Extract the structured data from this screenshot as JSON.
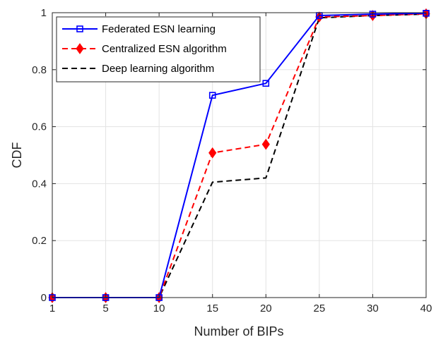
{
  "chart_data": {
    "type": "line",
    "xlabel": "Number of BIPs",
    "ylabel": "CDF",
    "categories": [
      "1",
      "5",
      "10",
      "15",
      "20",
      "25",
      "30",
      "40"
    ],
    "ylim": [
      0,
      1
    ],
    "yticks": [
      "0",
      "0.2",
      "0.4",
      "0.6",
      "0.8",
      "1"
    ],
    "grid": true,
    "legend_position": "top-left",
    "series": [
      {
        "name": "Federated ESN learning",
        "values": [
          0,
          0,
          0,
          0.71,
          0.752,
          0.99,
          0.995,
          0.998
        ],
        "color": "#0000ff",
        "dash": "solid",
        "marker": "square"
      },
      {
        "name": "Centralized ESN algorithm",
        "values": [
          0,
          0,
          0,
          0.508,
          0.538,
          0.985,
          0.99,
          0.996
        ],
        "color": "#ff0000",
        "dash": "dashed",
        "marker": "diamond"
      },
      {
        "name": "Deep learning algorithm",
        "values": [
          0,
          0,
          0,
          0.405,
          0.42,
          0.982,
          0.99,
          0.995
        ],
        "color": "#000000",
        "dash": "dashed",
        "marker": "none"
      }
    ]
  }
}
